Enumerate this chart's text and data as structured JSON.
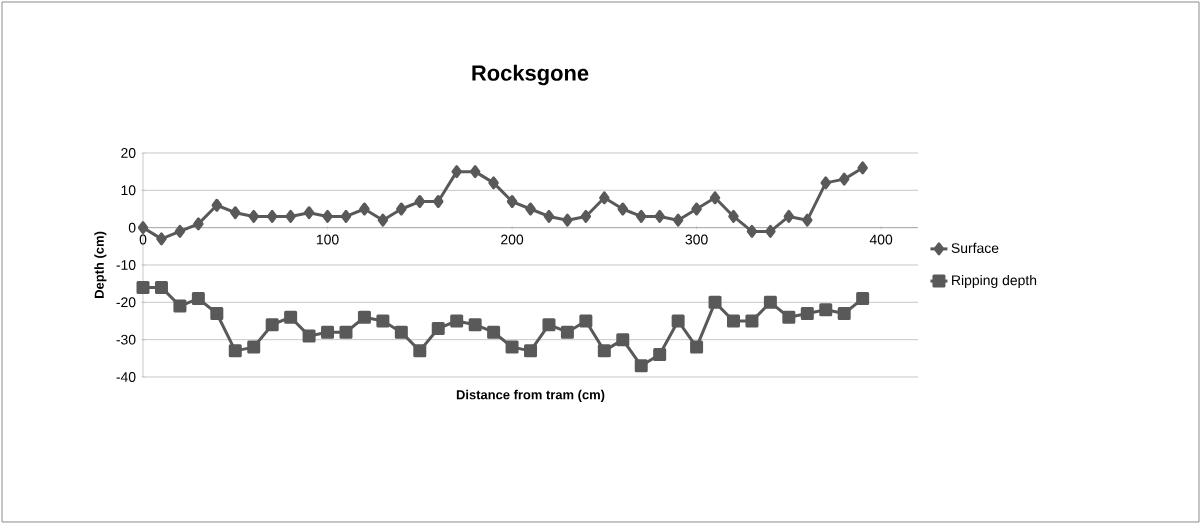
{
  "chart_data": {
    "type": "line",
    "title": "Rocksgone",
    "xlabel": "Distance from tram (cm)",
    "ylabel": "Depth (cm)",
    "x": [
      0,
      10,
      20,
      30,
      40,
      50,
      60,
      70,
      80,
      90,
      100,
      110,
      120,
      130,
      140,
      150,
      160,
      170,
      180,
      190,
      200,
      210,
      220,
      230,
      240,
      250,
      260,
      270,
      280,
      290,
      300,
      310,
      320,
      330,
      340,
      350,
      360,
      370,
      380,
      390
    ],
    "series": [
      {
        "name": "Surface",
        "color": "#595959",
        "marker": "diamond",
        "values": [
          0,
          -3,
          -1,
          1,
          6,
          4,
          3,
          3,
          3,
          4,
          3,
          3,
          5,
          2,
          5,
          7,
          7,
          15,
          15,
          12,
          7,
          5,
          3,
          2,
          3,
          8,
          5,
          3,
          3,
          2,
          5,
          8,
          3,
          -1,
          -1,
          3,
          2,
          12,
          13,
          16
        ]
      },
      {
        "name": "Ripping depth",
        "color": "#595959",
        "marker": "square",
        "values": [
          -16,
          -16,
          -21,
          -19,
          -23,
          -33,
          -32,
          -26,
          -24,
          -29,
          -28,
          -28,
          -24,
          -25,
          -28,
          -33,
          -27,
          -25,
          -26,
          -28,
          -32,
          -33,
          -26,
          -28,
          -25,
          -33,
          -30,
          -37,
          -34,
          -25,
          -32,
          -20,
          -25,
          -25,
          -20,
          -24,
          -23,
          -22,
          -23,
          -19
        ]
      }
    ],
    "xlim": [
      0,
      420
    ],
    "xticks": [
      0,
      100,
      200,
      300,
      400
    ],
    "ylim": [
      -40,
      20
    ],
    "yticks": [
      -40,
      -30,
      -20,
      -10,
      0,
      10,
      20
    ],
    "grid": "y",
    "legend": "right",
    "line_style": "solid"
  }
}
